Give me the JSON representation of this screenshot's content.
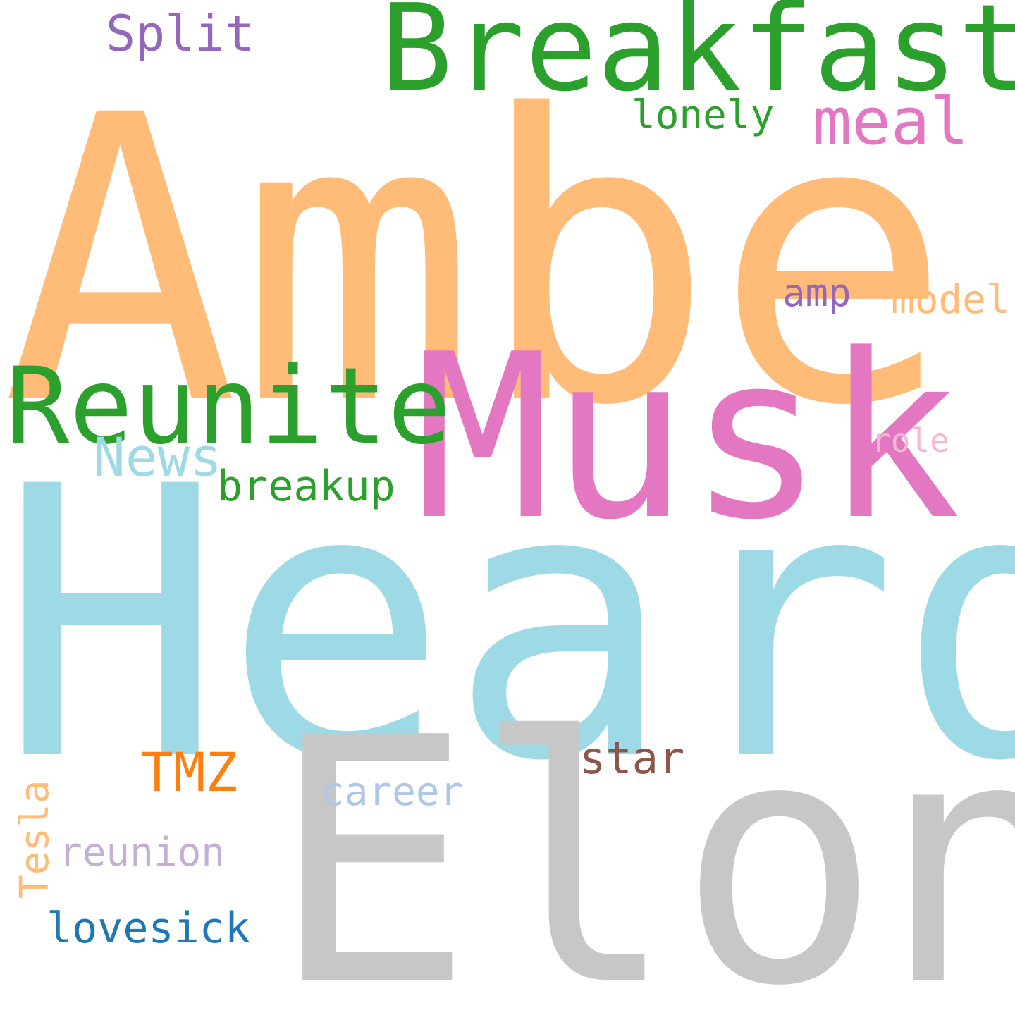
{
  "word_cloud": {
    "words": [
      {
        "id": "amber",
        "text": "Amber",
        "color": "#ffbb78"
      },
      {
        "id": "heard",
        "text": "Heard",
        "color": "#9edae5"
      },
      {
        "id": "elon",
        "text": "Elon",
        "color": "#c7c7c7"
      },
      {
        "id": "musk",
        "text": "Musk",
        "color": "#e377c2"
      },
      {
        "id": "breakfast",
        "text": "Breakfast",
        "color": "#2ca02c"
      },
      {
        "id": "reunite",
        "text": "Reunite",
        "color": "#2ca02c"
      },
      {
        "id": "split",
        "text": "Split",
        "color": "#9467bd"
      },
      {
        "id": "meal",
        "text": "meal",
        "color": "#e377c2"
      },
      {
        "id": "lonely",
        "text": "lonely",
        "color": "#2ca02c"
      },
      {
        "id": "news",
        "text": "News",
        "color": "#9edae5"
      },
      {
        "id": "breakup",
        "text": "breakup",
        "color": "#2ca02c"
      },
      {
        "id": "amp",
        "text": "amp",
        "color": "#9467bd"
      },
      {
        "id": "model",
        "text": "model",
        "color": "#ffbb78"
      },
      {
        "id": "role",
        "text": "role",
        "color": "#f7b6d2"
      },
      {
        "id": "tmz",
        "text": "TMZ",
        "color": "#ff7f0e"
      },
      {
        "id": "star",
        "text": "star",
        "color": "#8c564b"
      },
      {
        "id": "career",
        "text": "career",
        "color": "#aec7e8"
      },
      {
        "id": "reunion",
        "text": "reunion",
        "color": "#c5b0d5"
      },
      {
        "id": "lovesick",
        "text": "lovesick",
        "color": "#1f77b4"
      },
      {
        "id": "tesla",
        "text": "Tesla",
        "color": "#ffbb78"
      }
    ]
  }
}
